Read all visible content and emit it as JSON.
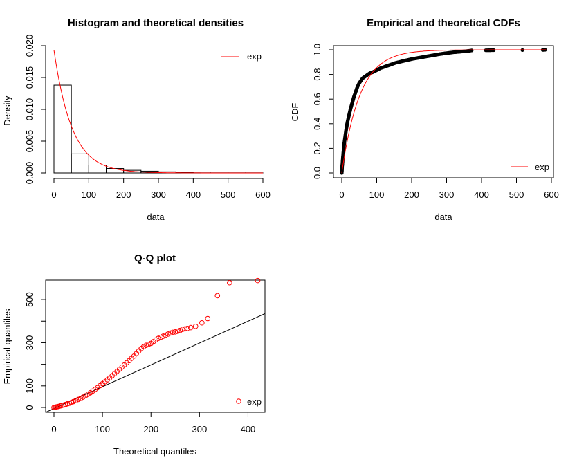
{
  "chart_data": [
    {
      "type": "bar",
      "title": "Histogram and theoretical densities",
      "xlabel": "data",
      "ylabel": "Density",
      "xlim": [
        0,
        600
      ],
      "ylim": [
        0,
        0.02
      ],
      "x_ticks": [
        0,
        100,
        200,
        300,
        400,
        500,
        600
      ],
      "y_ticks": [
        "0.000",
        "0.005",
        "0.010",
        "0.015",
        "0.020"
      ],
      "bins": [
        {
          "from": 0,
          "to": 50,
          "density": 0.0138
        },
        {
          "from": 50,
          "to": 100,
          "density": 0.003
        },
        {
          "from": 100,
          "to": 150,
          "density": 0.00125
        },
        {
          "from": 150,
          "to": 200,
          "density": 0.0007
        },
        {
          "from": 200,
          "to": 250,
          "density": 0.00042
        },
        {
          "from": 250,
          "to": 300,
          "density": 0.00028
        },
        {
          "from": 300,
          "to": 350,
          "density": 0.00018
        },
        {
          "from": 350,
          "to": 400,
          "density": 8e-05
        },
        {
          "from": 400,
          "to": 450,
          "density": 2e-05
        },
        {
          "from": 450,
          "to": 500,
          "density": 2e-05
        },
        {
          "from": 500,
          "to": 550,
          "density": 2e-05
        },
        {
          "from": 550,
          "to": 600,
          "density": 2e-05
        }
      ],
      "series": [
        {
          "name": "exp",
          "rate": 0.0193,
          "color": "#ff0000"
        }
      ],
      "legend_position": "top-right"
    },
    {
      "type": "line",
      "title": "Empirical and theoretical CDFs",
      "xlabel": "data",
      "ylabel": "CDF",
      "xlim": [
        0,
        600
      ],
      "ylim": [
        0,
        1
      ],
      "x_ticks": [
        0,
        100,
        200,
        300,
        400,
        500,
        600
      ],
      "y_ticks": [
        "0.0",
        "0.2",
        "0.4",
        "0.6",
        "0.8",
        "1.0"
      ],
      "empirical_points": [
        [
          0,
          0.0
        ],
        [
          0.5,
          0.02
        ],
        [
          1,
          0.05
        ],
        [
          2,
          0.08
        ],
        [
          3,
          0.12
        ],
        [
          5,
          0.18
        ],
        [
          7,
          0.24
        ],
        [
          10,
          0.3
        ],
        [
          13,
          0.36
        ],
        [
          16,
          0.41
        ],
        [
          20,
          0.46
        ],
        [
          25,
          0.52
        ],
        [
          30,
          0.57
        ],
        [
          35,
          0.62
        ],
        [
          40,
          0.66
        ],
        [
          45,
          0.7
        ],
        [
          50,
          0.73
        ],
        [
          55,
          0.75
        ],
        [
          60,
          0.77
        ],
        [
          70,
          0.79
        ],
        [
          80,
          0.81
        ],
        [
          90,
          0.82
        ],
        [
          100,
          0.835
        ],
        [
          110,
          0.85
        ],
        [
          125,
          0.865
        ],
        [
          140,
          0.88
        ],
        [
          155,
          0.895
        ],
        [
          170,
          0.905
        ],
        [
          185,
          0.915
        ],
        [
          200,
          0.925
        ],
        [
          220,
          0.935
        ],
        [
          240,
          0.945
        ],
        [
          260,
          0.955
        ],
        [
          280,
          0.965
        ],
        [
          300,
          0.973
        ],
        [
          320,
          0.98
        ],
        [
          340,
          0.985
        ],
        [
          360,
          0.99
        ],
        [
          372,
          0.995
        ],
        [
          412,
          0.996
        ],
        [
          435,
          0.997
        ],
        [
          517,
          0.998
        ],
        [
          575,
          0.999
        ],
        [
          582,
          1.0
        ]
      ],
      "series": [
        {
          "name": "exp",
          "rate": 0.0193,
          "color": "#ff0000"
        }
      ],
      "legend_position": "bottom-right"
    },
    {
      "type": "scatter",
      "title": "Q-Q plot",
      "xlabel": "Theoretical quantiles",
      "ylabel": "Empirical quantiles",
      "xlim": [
        0,
        435
      ],
      "ylim": [
        0,
        590
      ],
      "x_ticks": [
        0,
        100,
        200,
        300,
        400
      ],
      "y_ticks": [
        0,
        100,
        300,
        500
      ],
      "points": [
        [
          0,
          0
        ],
        [
          2,
          1
        ],
        [
          4,
          2
        ],
        [
          6,
          3
        ],
        [
          8,
          4
        ],
        [
          10,
          5
        ],
        [
          13,
          7
        ],
        [
          16,
          9
        ],
        [
          20,
          11
        ],
        [
          24,
          14
        ],
        [
          28,
          17
        ],
        [
          32,
          20
        ],
        [
          36,
          23
        ],
        [
          40,
          27
        ],
        [
          45,
          32
        ],
        [
          50,
          37
        ],
        [
          55,
          42
        ],
        [
          60,
          48
        ],
        [
          65,
          54
        ],
        [
          70,
          61
        ],
        [
          75,
          68
        ],
        [
          80,
          76
        ],
        [
          85,
          84
        ],
        [
          90,
          92
        ],
        [
          95,
          101
        ],
        [
          100,
          110
        ],
        [
          105,
          119
        ],
        [
          110,
          128
        ],
        [
          115,
          137
        ],
        [
          120,
          147
        ],
        [
          125,
          157
        ],
        [
          130,
          167
        ],
        [
          135,
          177
        ],
        [
          140,
          187
        ],
        [
          145,
          197
        ],
        [
          150,
          207
        ],
        [
          155,
          217
        ],
        [
          160,
          228
        ],
        [
          165,
          238
        ],
        [
          170,
          250
        ],
        [
          175,
          262
        ],
        [
          180,
          273
        ],
        [
          185,
          282
        ],
        [
          190,
          288
        ],
        [
          195,
          292
        ],
        [
          200,
          297
        ],
        [
          205,
          305
        ],
        [
          210,
          313
        ],
        [
          215,
          320
        ],
        [
          220,
          325
        ],
        [
          225,
          330
        ],
        [
          230,
          335
        ],
        [
          235,
          340
        ],
        [
          240,
          345
        ],
        [
          245,
          348
        ],
        [
          250,
          350
        ],
        [
          255,
          353
        ],
        [
          260,
          357
        ],
        [
          265,
          362
        ],
        [
          270,
          364
        ],
        [
          275,
          366
        ],
        [
          282,
          370
        ],
        [
          292,
          376
        ],
        [
          305,
          392
        ],
        [
          317,
          412
        ],
        [
          337,
          518
        ],
        [
          362,
          578
        ],
        [
          420,
          588
        ]
      ],
      "reference_line": [
        [
          -20,
          -20
        ],
        [
          435,
          435
        ]
      ],
      "series": [
        {
          "name": "exp",
          "color": "#ff0000"
        }
      ],
      "legend_position": "bottom-right"
    }
  ]
}
